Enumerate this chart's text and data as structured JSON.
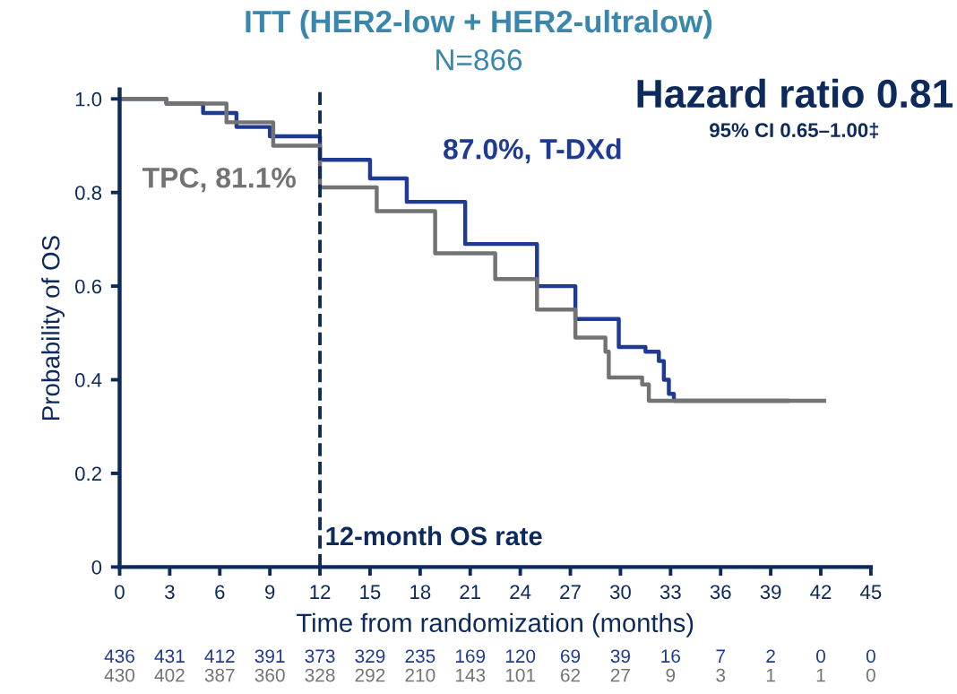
{
  "chart_data": {
    "type": "step",
    "title": "ITT (HER2-low + HER2-ultralow)",
    "subtitle": "N=866",
    "xlabel": "Time from randomization (months)",
    "ylabel": "Probability of OS",
    "xlim": [
      0,
      45
    ],
    "ylim": [
      0,
      1.02
    ],
    "xticks": [
      0,
      3,
      6,
      9,
      12,
      15,
      18,
      21,
      24,
      27,
      30,
      33,
      36,
      39,
      42,
      45
    ],
    "yticks": [
      0,
      0.2,
      0.4,
      0.6,
      0.8,
      {
        "value": 1.0,
        "label": "1.0"
      }
    ],
    "grid": false,
    "marker": "none",
    "line_style": "solid",
    "series": [
      {
        "name": "87.0%, T-DXd",
        "color": "#1f3a93",
        "x": [
          0,
          2.8,
          5,
          7,
          9,
          12,
          15,
          17.2,
          20.7,
          25,
          27.3,
          29.9,
          31.5,
          32.3,
          32.6,
          32.9,
          33.2,
          40
        ],
        "values": [
          1.0,
          0.99,
          0.97,
          0.94,
          0.92,
          0.87,
          0.83,
          0.78,
          0.69,
          0.6,
          0.53,
          0.47,
          0.46,
          0.44,
          0.4,
          0.37,
          0.355,
          0.355
        ]
      },
      {
        "name": "TPC, 81.1%",
        "color": "#737373",
        "x": [
          0,
          2.8,
          6.4,
          9.2,
          12,
          15.4,
          18.9,
          22.5,
          25,
          27.3,
          29.1,
          29.3,
          31.3,
          31.7,
          42.2
        ],
        "values": [
          1.0,
          0.99,
          0.95,
          0.9,
          0.811,
          0.76,
          0.67,
          0.615,
          0.55,
          0.49,
          0.46,
          0.405,
          0.39,
          0.355,
          0.355
        ]
      }
    ],
    "ref_lines": [
      {
        "axis": "x",
        "value": 12,
        "label": "12-month OS rate",
        "color": "#0d2a5c",
        "line_style": "dashed"
      }
    ],
    "annotations": [
      "Hazard ratio 0.81",
      "95% CI 0.65–1.00‡",
      "436 431 412 391 373 329 235 169 120 69 39 16 7 2 0 0",
      "430 402 387 360 328 292 210 143 101 62 27 9 3 1 1 0"
    ]
  }
}
